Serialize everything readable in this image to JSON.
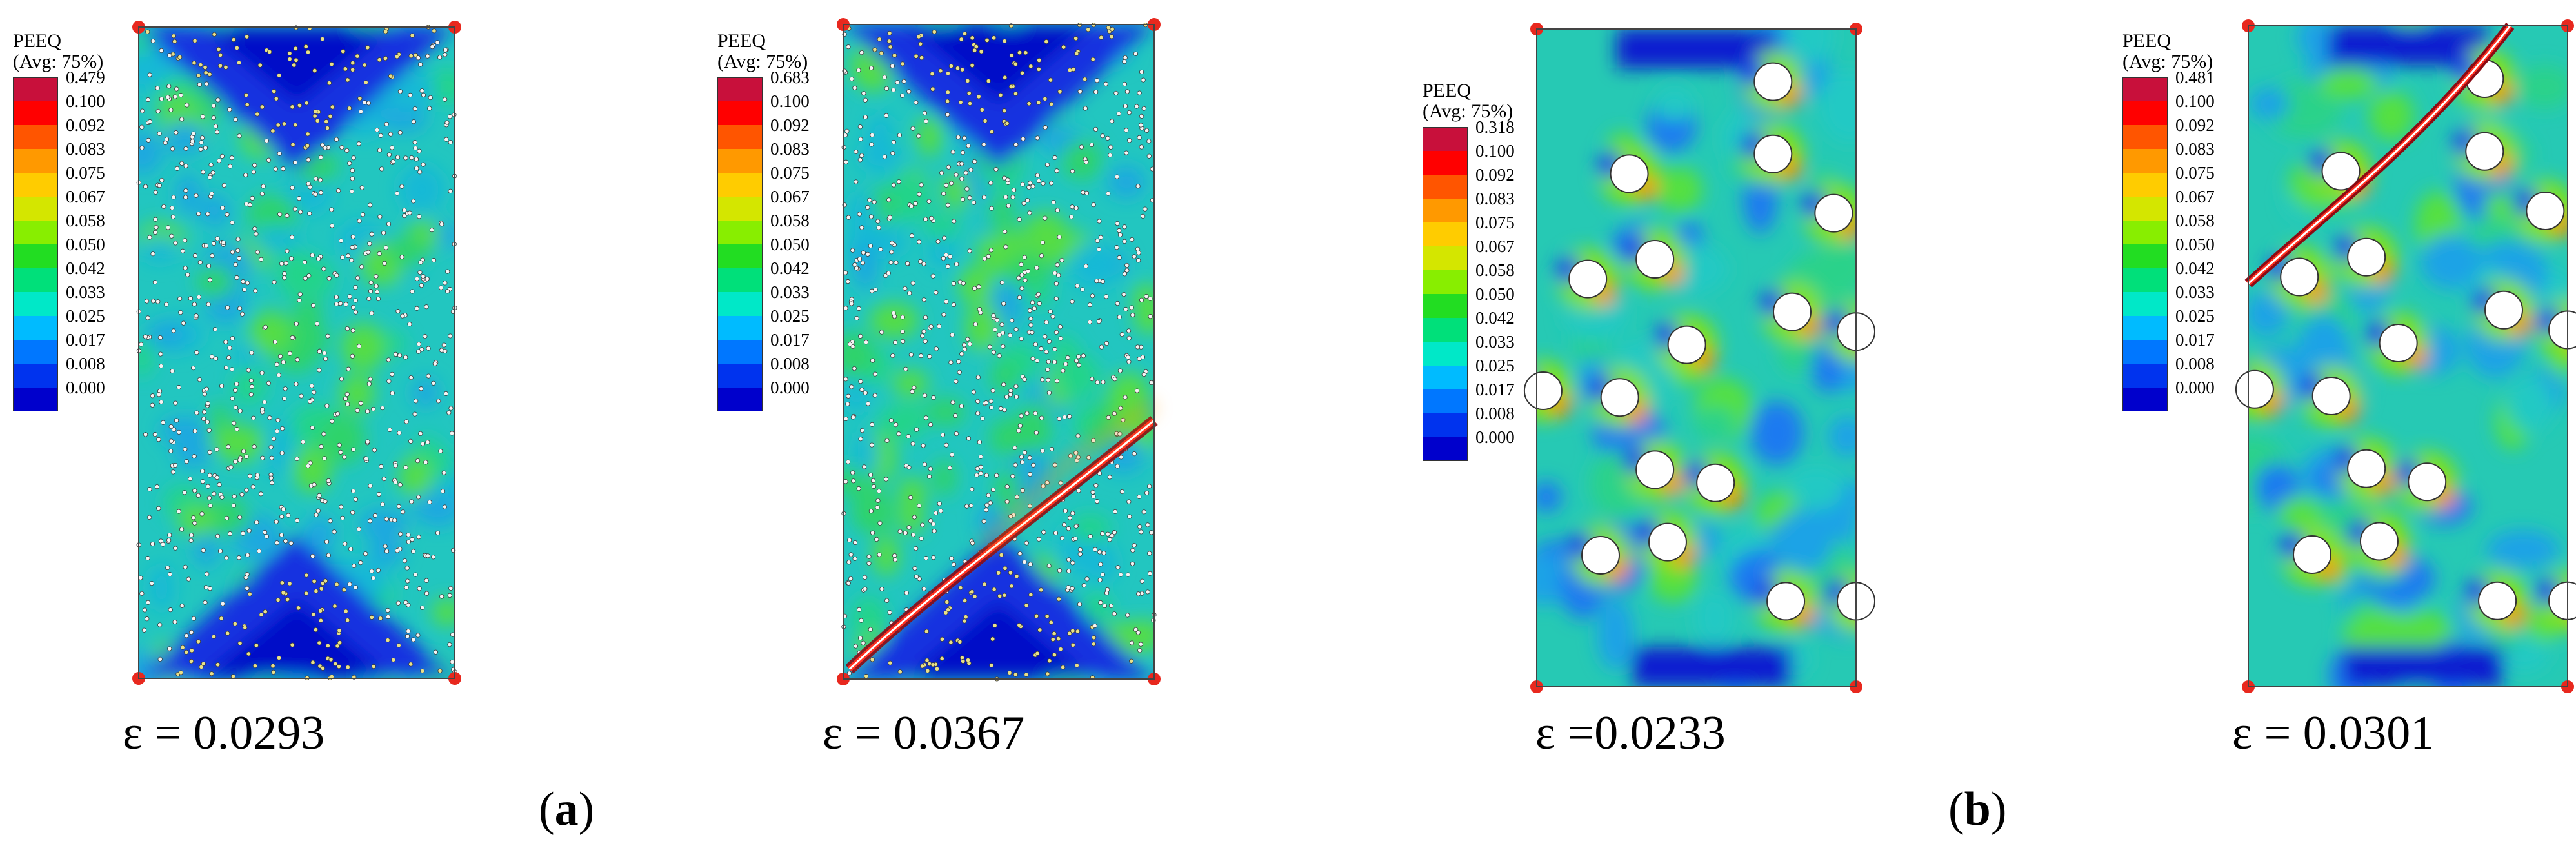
{
  "legend": {
    "title_line1": "PEEQ",
    "title_line2": "(Avg: 75%)",
    "tick_values": [
      "0.100",
      "0.092",
      "0.083",
      "0.075",
      "0.067",
      "0.058",
      "0.050",
      "0.042",
      "0.033",
      "0.025",
      "0.017",
      "0.008",
      "0.000"
    ],
    "colors": [
      "#c8103b",
      "#ff0000",
      "#ff5500",
      "#ff9900",
      "#ffcc00",
      "#d4e600",
      "#88ee00",
      "#22dd22",
      "#00e07a",
      "#00e8c8",
      "#00bbff",
      "#0077ff",
      "#0033ee",
      "#0000cc"
    ]
  },
  "panels": [
    {
      "legend_max": "0.479",
      "strain_label": "ε = 0.0293",
      "style": "fine-intact"
    },
    {
      "legend_max": "0.683",
      "strain_label": "ε = 0.0367",
      "style": "fine-cracked"
    },
    {
      "legend_max": "0.318",
      "strain_label": "ε =0.0233",
      "style": "coarse-intact"
    },
    {
      "legend_max": "0.481",
      "strain_label": "ε = 0.0301",
      "style": "coarse-cracked"
    }
  ],
  "tags": [
    {
      "open": "(",
      "letter": "a",
      "close": ")"
    },
    {
      "open": "(",
      "letter": "b",
      "close": ")"
    }
  ]
}
